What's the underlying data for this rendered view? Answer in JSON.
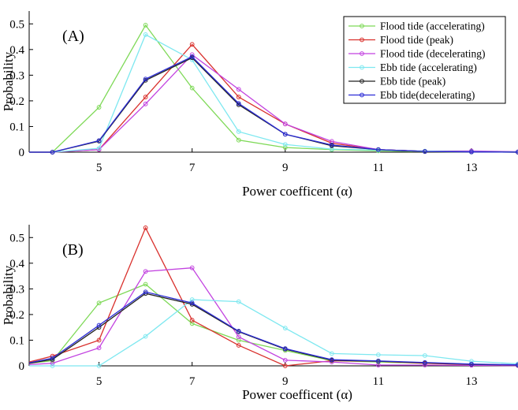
{
  "chart_data": [
    {
      "type": "line",
      "panel_label": "(A)",
      "xlabel": "Power coefficent (α)",
      "ylabel": "Probability",
      "xlim": [
        3.5,
        14
      ],
      "ylim": [
        0,
        0.55
      ],
      "xticks": [
        5,
        7,
        9,
        11,
        13
      ],
      "yticks": [
        0,
        0.1,
        0.2,
        0.3,
        0.4,
        0.5
      ],
      "xtick_labels": [
        "5",
        "7",
        "9",
        "11",
        "13"
      ],
      "ytick_labels": [
        "0",
        "0.1",
        "0.2",
        "0.3",
        "0.4",
        "0.5"
      ],
      "grid": false,
      "legend_position": "top-right",
      "series": [
        {
          "name": "Flood tide (accelerating)",
          "color": "#7ED957",
          "x": [
            3.5,
            4,
            5,
            6,
            7,
            8,
            9,
            10,
            11,
            12,
            13,
            14
          ],
          "y": [
            0,
            0,
            0.175,
            0.495,
            0.25,
            0.047,
            0.018,
            0.01,
            0.005,
            0.002,
            0.001,
            0
          ]
        },
        {
          "name": "Flood tide (peak)",
          "color": "#D9302C",
          "x": [
            3.5,
            4,
            5,
            6,
            7,
            8,
            9,
            10,
            11,
            12,
            13,
            14
          ],
          "y": [
            0,
            0,
            0.01,
            0.215,
            0.42,
            0.215,
            0.11,
            0.035,
            0.01,
            0.003,
            0.002,
            0
          ]
        },
        {
          "name": "Flood tide (decelerating)",
          "color": "#C242E0",
          "x": [
            3.5,
            4,
            5,
            6,
            7,
            8,
            9,
            10,
            11,
            12,
            13,
            14
          ],
          "y": [
            0,
            0,
            0.01,
            0.188,
            0.38,
            0.245,
            0.11,
            0.042,
            0.01,
            0.003,
            0.005,
            0.002
          ]
        },
        {
          "name": "Ebb tide (accelerating)",
          "color": "#7EE8F0",
          "x": [
            3.5,
            4,
            5,
            6,
            7,
            8,
            9,
            10,
            11,
            12,
            13,
            14
          ],
          "y": [
            0,
            0,
            0.015,
            0.458,
            0.36,
            0.08,
            0.03,
            0.012,
            0.008,
            0.004,
            0.002,
            0.001
          ]
        },
        {
          "name": "Ebb tide (peak)",
          "color": "#222222",
          "x": [
            3.5,
            4,
            5,
            6,
            7,
            8,
            9,
            10,
            11,
            12,
            13,
            14
          ],
          "y": [
            0,
            0,
            0.043,
            0.28,
            0.368,
            0.185,
            0.07,
            0.025,
            0.01,
            0.003,
            0.001,
            0
          ]
        },
        {
          "name": "Ebb tide(decelerating)",
          "color": "#2B2BD6",
          "x": [
            3.5,
            4,
            5,
            6,
            7,
            8,
            9,
            10,
            11,
            12,
            13,
            14
          ],
          "y": [
            0,
            0,
            0.045,
            0.285,
            0.372,
            0.19,
            0.07,
            0.028,
            0.01,
            0.003,
            0.001,
            0
          ]
        }
      ]
    },
    {
      "type": "line",
      "panel_label": "(B)",
      "xlabel": "Power coefficent (α)",
      "ylabel": "Probability",
      "xlim": [
        3.5,
        14
      ],
      "ylim": [
        0,
        0.55
      ],
      "xticks": [
        5,
        7,
        9,
        11,
        13
      ],
      "yticks": [
        0,
        0.1,
        0.2,
        0.3,
        0.4,
        0.5
      ],
      "xtick_labels": [
        "5",
        "7",
        "9",
        "11",
        "13"
      ],
      "ytick_labels": [
        "0",
        "0.1",
        "0.2",
        "0.3",
        "0.4",
        "0.5"
      ],
      "grid": false,
      "series": [
        {
          "name": "Flood tide (accelerating)",
          "color": "#7ED957",
          "x": [
            3.5,
            4,
            5,
            6,
            7,
            8,
            9,
            10,
            11,
            12,
            13,
            14
          ],
          "y": [
            0.01,
            0.02,
            0.245,
            0.318,
            0.165,
            0.1,
            0.06,
            0.02,
            0.015,
            0.01,
            0.005,
            0.002
          ]
        },
        {
          "name": "Flood tide (peak)",
          "color": "#D9302C",
          "x": [
            3.5,
            4,
            5,
            6,
            7,
            8,
            9,
            10,
            11,
            12,
            13,
            14
          ],
          "y": [
            0.015,
            0.038,
            0.1,
            0.538,
            0.178,
            0.08,
            0,
            0.02,
            0.018,
            0.01,
            0.005,
            0.003
          ]
        },
        {
          "name": "Flood tide (decelerating)",
          "color": "#C242E0",
          "x": [
            3.5,
            4,
            5,
            6,
            7,
            8,
            9,
            10,
            11,
            12,
            13,
            14
          ],
          "y": [
            0.005,
            0.01,
            0.07,
            0.368,
            0.382,
            0.113,
            0.022,
            0.015,
            0.003,
            0.003,
            0.002,
            0.001
          ]
        },
        {
          "name": "Ebb tide (accelerating)",
          "color": "#7EE8F0",
          "x": [
            3.5,
            4,
            5,
            6,
            7,
            8,
            9,
            10,
            11,
            12,
            13,
            14
          ],
          "y": [
            0,
            0,
            0,
            0.115,
            0.258,
            0.25,
            0.147,
            0.048,
            0.043,
            0.04,
            0.018,
            0.008
          ]
        },
        {
          "name": "Ebb tide (peak)",
          "color": "#222222",
          "x": [
            3.5,
            4,
            5,
            6,
            7,
            8,
            9,
            10,
            11,
            12,
            13,
            14
          ],
          "y": [
            0.01,
            0.025,
            0.15,
            0.282,
            0.24,
            0.133,
            0.065,
            0.022,
            0.018,
            0.012,
            0.006,
            0.003
          ]
        },
        {
          "name": "Ebb tide(decelerating)",
          "color": "#2B2BD6",
          "x": [
            3.5,
            4,
            5,
            6,
            7,
            8,
            9,
            10,
            11,
            12,
            13,
            14
          ],
          "y": [
            0.012,
            0.03,
            0.158,
            0.288,
            0.245,
            0.135,
            0.067,
            0.024,
            0.019,
            0.013,
            0.007,
            0.004
          ]
        }
      ]
    }
  ]
}
